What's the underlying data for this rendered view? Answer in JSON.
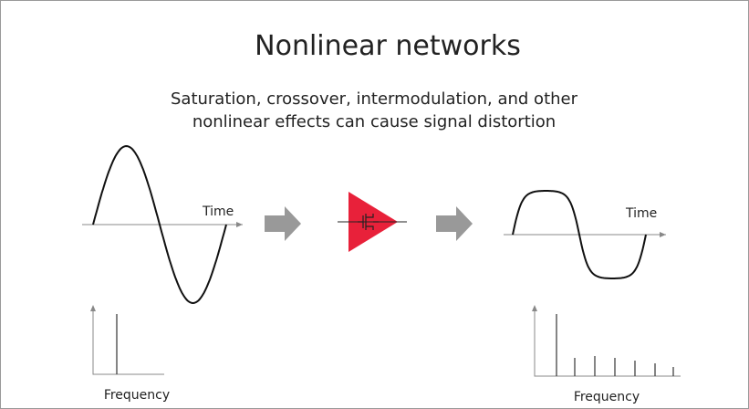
{
  "title": "Nonlinear networks",
  "subtitle": [
    "Saturation, crossover, intermodulation, and other",
    "nonlinear effects can cause signal distortion"
  ],
  "input": {
    "time_label": "Time",
    "frequency_label": "Frequency"
  },
  "output": {
    "time_label": "Time",
    "frequency_label": "Frequency"
  }
}
